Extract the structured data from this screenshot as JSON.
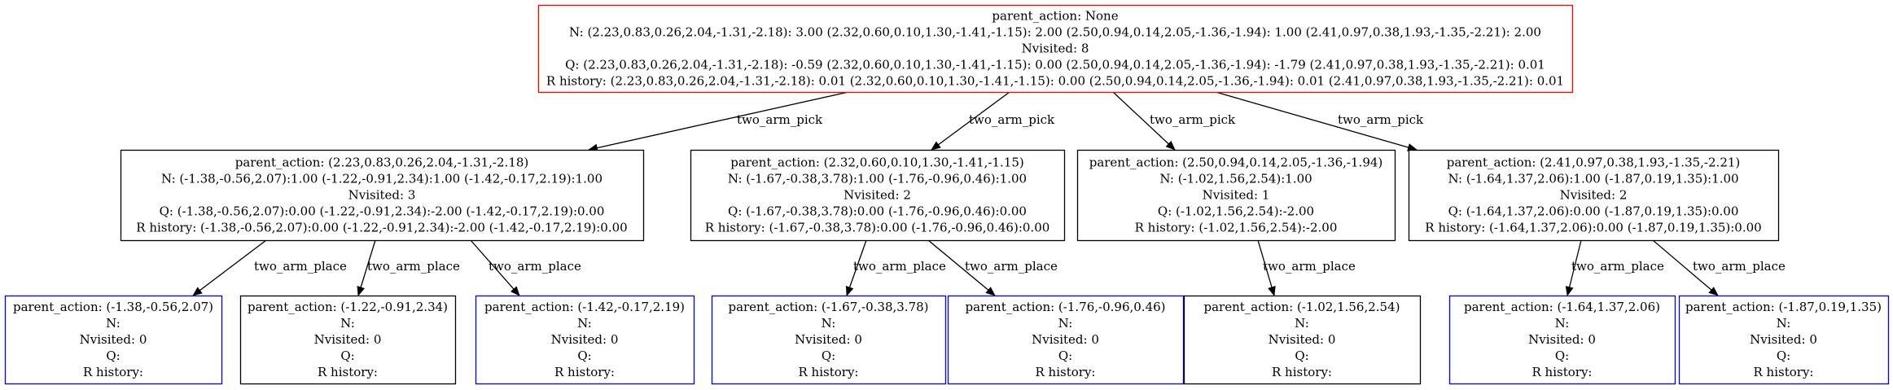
{
  "colors": {
    "root_border": "#ff0000",
    "leaf_border": "#0000ff",
    "inner_border": "#000000",
    "edge": "#000000"
  },
  "nodes": {
    "root": {
      "border": "root",
      "lines": [
        "parent_action: None",
        "N:  (2.23,0.83,0.26,2.04,-1.31,-2.18): 3.00  (2.32,0.60,0.10,1.30,-1.41,-1.15): 2.00  (2.50,0.94,0.14,2.05,-1.36,-1.94): 1.00  (2.41,0.97,0.38,1.93,-1.35,-2.21): 2.00",
        "Nvisited: 8",
        "Q:  (2.23,0.83,0.26,2.04,-1.31,-2.18): -0.59  (2.32,0.60,0.10,1.30,-1.41,-1.15): 0.00  (2.50,0.94,0.14,2.05,-1.36,-1.94): -1.79  (2.41,0.97,0.38,1.93,-1.35,-2.21): 0.01",
        "R history:  (2.23,0.83,0.26,2.04,-1.31,-2.18): 0.01  (2.32,0.60,0.10,1.30,-1.41,-1.15): 0.00  (2.50,0.94,0.14,2.05,-1.36,-1.94): 0.01  (2.41,0.97,0.38,1.93,-1.35,-2.21): 0.01"
      ]
    },
    "pick_1": {
      "border": "inner",
      "lines": [
        "parent_action:  (2.23,0.83,0.26,2.04,-1.31,-2.18)",
        "N:  (-1.38,-0.56,2.07):1.00  (-1.22,-0.91,2.34):1.00  (-1.42,-0.17,2.19):1.00",
        "Nvisited: 3",
        "Q:  (-1.38,-0.56,2.07):0.00  (-1.22,-0.91,2.34):-2.00  (-1.42,-0.17,2.19):0.00",
        "R history:  (-1.38,-0.56,2.07):0.00  (-1.22,-0.91,2.34):-2.00  (-1.42,-0.17,2.19):0.00"
      ]
    },
    "pick_2": {
      "border": "inner",
      "lines": [
        "parent_action:  (2.32,0.60,0.10,1.30,-1.41,-1.15)",
        "N:  (-1.67,-0.38,3.78):1.00  (-1.76,-0.96,0.46):1.00",
        "Nvisited: 2",
        "Q:  (-1.67,-0.38,3.78):0.00  (-1.76,-0.96,0.46):0.00",
        "R history:  (-1.67,-0.38,3.78):0.00  (-1.76,-0.96,0.46):0.00"
      ]
    },
    "pick_3": {
      "border": "inner",
      "lines": [
        "parent_action:  (2.50,0.94,0.14,2.05,-1.36,-1.94)",
        "N:  (-1.02,1.56,2.54):1.00",
        "Nvisited: 1",
        "Q:  (-1.02,1.56,2.54):-2.00",
        "R history:  (-1.02,1.56,2.54):-2.00"
      ]
    },
    "pick_4": {
      "border": "inner",
      "lines": [
        "parent_action:  (2.41,0.97,0.38,1.93,-1.35,-2.21)",
        "N:  (-1.64,1.37,2.06):1.00  (-1.87,0.19,1.35):1.00",
        "Nvisited: 2",
        "Q:  (-1.64,1.37,2.06):0.00  (-1.87,0.19,1.35):0.00",
        "R history:  (-1.64,1.37,2.06):0.00  (-1.87,0.19,1.35):0.00"
      ]
    },
    "place_1a": {
      "border": "leaf",
      "lines": [
        "parent_action:  (-1.38,-0.56,2.07)",
        "N:",
        "Nvisited: 0",
        "Q:",
        "R history:"
      ]
    },
    "place_1b": {
      "border": "inner",
      "lines": [
        "parent_action:  (-1.22,-0.91,2.34)",
        "N:",
        "Nvisited: 0",
        "Q:",
        "R history:"
      ]
    },
    "place_1c": {
      "border": "leaf",
      "lines": [
        "parent_action:  (-1.42,-0.17,2.19)",
        "N:",
        "Nvisited: 0",
        "Q:",
        "R history:"
      ]
    },
    "place_2a": {
      "border": "leaf",
      "lines": [
        "parent_action:  (-1.67,-0.38,3.78)",
        "N:",
        "Nvisited: 0",
        "Q:",
        "R history:"
      ]
    },
    "place_2b": {
      "border": "leaf",
      "lines": [
        "parent_action:  (-1.76,-0.96,0.46)",
        "N:",
        "Nvisited: 0",
        "Q:",
        "R history:"
      ]
    },
    "place_3a": {
      "border": "inner",
      "lines": [
        "parent_action:  (-1.02,1.56,2.54)",
        "N:",
        "Nvisited: 0",
        "Q:",
        "R history:"
      ]
    },
    "place_4a": {
      "border": "leaf",
      "lines": [
        "parent_action:  (-1.64,1.37,2.06)",
        "N:",
        "Nvisited: 0",
        "Q:",
        "R history:"
      ]
    },
    "place_4b": {
      "border": "leaf",
      "lines": [
        "parent_action:  (-1.87,0.19,1.35)",
        "N:",
        "Nvisited: 0",
        "Q:",
        "R history:"
      ]
    }
  },
  "edges": [
    {
      "from": "root",
      "to": "pick_1",
      "label": "two_arm_pick"
    },
    {
      "from": "root",
      "to": "pick_2",
      "label": "two_arm_pick"
    },
    {
      "from": "root",
      "to": "pick_3",
      "label": "two_arm_pick"
    },
    {
      "from": "root",
      "to": "pick_4",
      "label": "two_arm_pick"
    },
    {
      "from": "pick_1",
      "to": "place_1a",
      "label": "two_arm_place"
    },
    {
      "from": "pick_1",
      "to": "place_1b",
      "label": "two_arm_place"
    },
    {
      "from": "pick_1",
      "to": "place_1c",
      "label": "two_arm_place"
    },
    {
      "from": "pick_2",
      "to": "place_2a",
      "label": "two_arm_place"
    },
    {
      "from": "pick_2",
      "to": "place_2b",
      "label": "two_arm_place"
    },
    {
      "from": "pick_3",
      "to": "place_3a",
      "label": "two_arm_place"
    },
    {
      "from": "pick_4",
      "to": "place_4a",
      "label": "two_arm_place"
    },
    {
      "from": "pick_4",
      "to": "place_4b",
      "label": "two_arm_place"
    }
  ]
}
